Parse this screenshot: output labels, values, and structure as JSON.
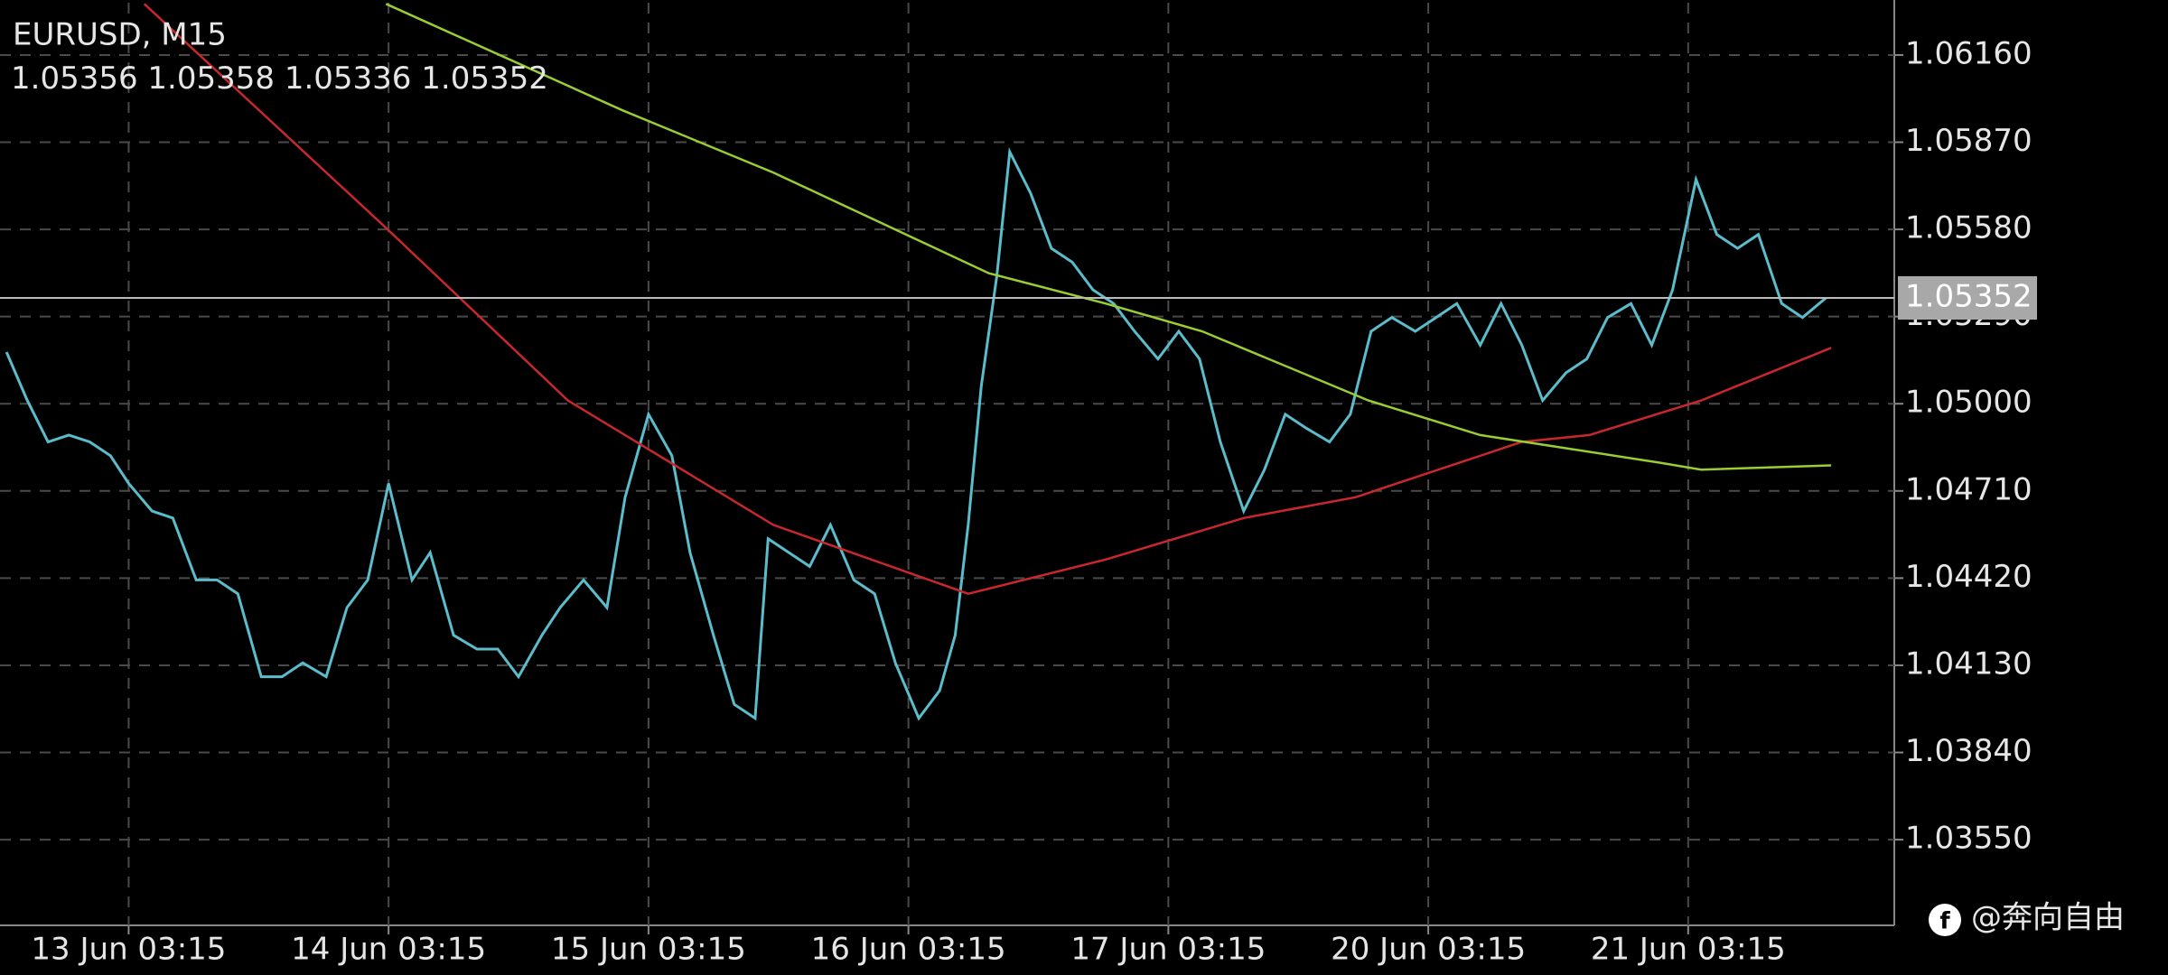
{
  "chart_data": {
    "type": "line",
    "title": "EURUSD, M15",
    "ohlc": [
      1.05356,
      1.05358,
      1.05336,
      1.05352
    ],
    "last_price": 1.05352,
    "watermark": "@奔向自由",
    "grid": true,
    "xlim": [
      -0.495,
      6.793
    ],
    "ylim": [
      1.03265,
      1.06334
    ],
    "xticks": [
      {
        "value": 0,
        "label": "13 Jun 03:15"
      },
      {
        "value": 1,
        "label": "14 Jun 03:15"
      },
      {
        "value": 2,
        "label": "15 Jun 03:15"
      },
      {
        "value": 3,
        "label": "16 Jun 03:15"
      },
      {
        "value": 4,
        "label": "17 Jun 03:15"
      },
      {
        "value": 5,
        "label": "20 Jun 03:15"
      },
      {
        "value": 6,
        "label": "21 Jun 03:15"
      }
    ],
    "yticks": [
      {
        "value": 1.0616,
        "label": "1.06160"
      },
      {
        "value": 1.0587,
        "label": "1.05870"
      },
      {
        "value": 1.0558,
        "label": "1.05580"
      },
      {
        "value": 1.0529,
        "label": "1.05290"
      },
      {
        "value": 1.05,
        "label": "1.05000"
      },
      {
        "value": 1.0471,
        "label": "1.04710"
      },
      {
        "value": 1.0442,
        "label": "1.04420"
      },
      {
        "value": 1.0413,
        "label": "1.04130"
      },
      {
        "value": 1.0384,
        "label": "1.03840"
      },
      {
        "value": 1.0355,
        "label": "1.03550"
      }
    ],
    "series": [
      {
        "color": "#5bbccc",
        "x": [
          -0.47,
          -0.39,
          -0.31,
          -0.23,
          -0.15,
          -0.07,
          0,
          0.09,
          0.17,
          0.26,
          0.34,
          0.42,
          0.51,
          0.59,
          0.67,
          0.76,
          0.84,
          0.92,
          1.0,
          1.09,
          1.16,
          1.25,
          1.34,
          1.42,
          1.5,
          1.59,
          1.66,
          1.75,
          1.84,
          1.91,
          2.0,
          2.09,
          2.16,
          2.25,
          2.33,
          2.41,
          2.46,
          2.54,
          2.62,
          2.7,
          2.79,
          2.87,
          2.95,
          3.04,
          3.12,
          3.18,
          3.23,
          3.28,
          3.34,
          3.39,
          3.47,
          3.55,
          3.63,
          3.71,
          3.79,
          3.87,
          3.96,
          4.04,
          4.12,
          4.2,
          4.29,
          4.37,
          4.45,
          4.53,
          4.62,
          4.7,
          4.78,
          4.86,
          4.95,
          5.03,
          5.11,
          5.2,
          5.28,
          5.36,
          5.44,
          5.53,
          5.61,
          5.69,
          5.78,
          5.86,
          5.94,
          6.03,
          6.11,
          6.19,
          6.27,
          6.36,
          6.44,
          6.53
        ],
        "values": [
          1.05172,
          1.05011,
          1.04873,
          1.04896,
          1.04873,
          1.04827,
          1.04735,
          1.04643,
          1.0462,
          1.04414,
          1.04414,
          1.04368,
          1.04092,
          1.04092,
          1.04138,
          1.04092,
          1.04322,
          1.04414,
          1.04735,
          1.04414,
          1.04505,
          1.0423,
          1.04184,
          1.04184,
          1.04092,
          1.0423,
          1.04322,
          1.04414,
          1.04322,
          1.04689,
          1.04965,
          1.04827,
          1.04505,
          1.0423,
          1.04,
          1.03954,
          1.04551,
          1.04505,
          1.04459,
          1.04597,
          1.04414,
          1.04368,
          1.04138,
          1.03954,
          1.04046,
          1.0423,
          1.04597,
          1.05057,
          1.05425,
          1.05838,
          1.057,
          1.05517,
          1.05471,
          1.05379,
          1.05333,
          1.05241,
          1.05149,
          1.05241,
          1.05149,
          1.04873,
          1.04643,
          1.04781,
          1.04965,
          1.04919,
          1.04873,
          1.04965,
          1.05241,
          1.05287,
          1.05241,
          1.05287,
          1.05333,
          1.05195,
          1.05333,
          1.05195,
          1.05011,
          1.05103,
          1.05149,
          1.05287,
          1.05333,
          1.05195,
          1.05379,
          1.05746,
          1.05563,
          1.05517,
          1.05563,
          1.05333,
          1.05287,
          1.05352
        ]
      },
      {
        "color": "#c8282d",
        "x": [
          0.06,
          0.99,
          1.69,
          2.48,
          3.23,
          3.76,
          4.29,
          4.72,
          5.36,
          5.62,
          6.05,
          6.55
        ],
        "values": [
          1.0633,
          1.05585,
          1.05011,
          1.04597,
          1.04368,
          1.04482,
          1.0462,
          1.04689,
          1.04873,
          1.04896,
          1.05011,
          1.05186
        ]
      },
      {
        "color": "#9acd32",
        "x": [
          0.99,
          1.9,
          2.48,
          3.31,
          3.76,
          4.13,
          4.77,
          5.2,
          5.89,
          6.05,
          6.55
        ],
        "values": [
          1.0633,
          1.05976,
          1.05769,
          1.05434,
          1.05333,
          1.05241,
          1.05011,
          1.04896,
          1.04804,
          1.04781,
          1.04795
        ]
      }
    ]
  }
}
